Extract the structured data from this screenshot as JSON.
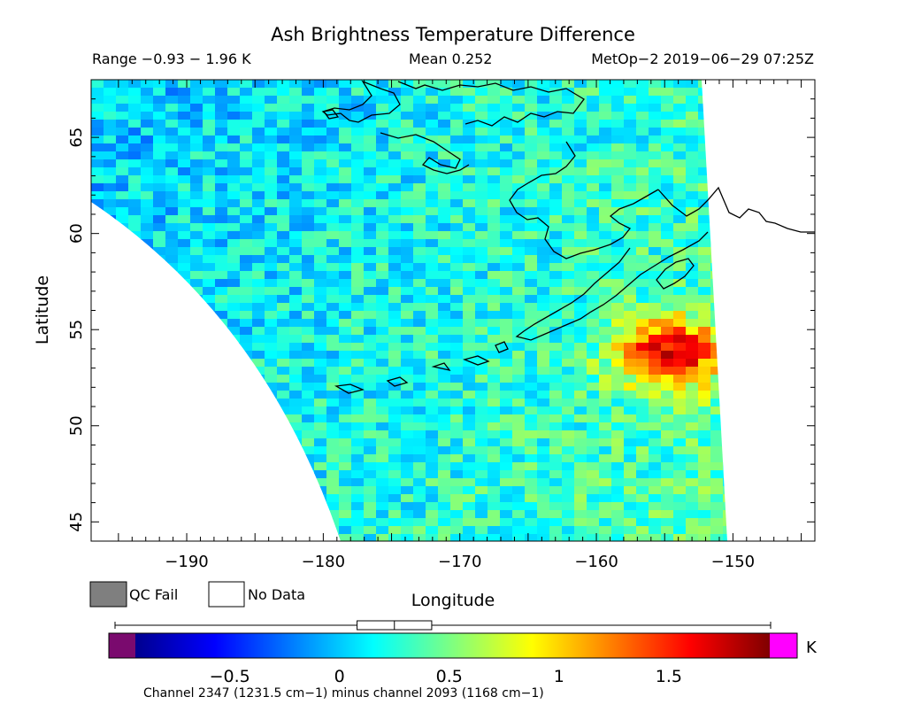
{
  "chart_data": {
    "type": "heatmap",
    "title": "Ash Brightness Temperature Difference",
    "header": {
      "range": "Range −0.93 − 1.96 K",
      "mean": "Mean 0.252",
      "source": "MetOp−2 2019−06−29 07:25Z"
    },
    "xlabel": "Longitude",
    "ylabel": "Latitude",
    "xlim": [
      -197,
      -144
    ],
    "ylim": [
      44,
      68
    ],
    "x_ticks": [
      -190,
      -180,
      -170,
      -160,
      -150
    ],
    "y_ticks": [
      45,
      50,
      55,
      60,
      65
    ],
    "x_tick_labels": [
      "−190",
      "−180",
      "−170",
      "−160",
      "−150"
    ],
    "y_tick_labels": [
      "45",
      "50",
      "55",
      "60",
      "65"
    ],
    "value_range": [
      -0.93,
      1.96
    ],
    "mean": 0.252,
    "hotspot": {
      "lon": -155,
      "lat": 54,
      "value": 1.9
    },
    "colorbar": {
      "unit": "K",
      "min": -0.93,
      "max": 1.96,
      "ticks": [
        -0.5,
        0,
        0.5,
        1,
        1.5
      ],
      "tick_labels": [
        "−0.5",
        "0",
        "0.5",
        "1",
        "1.5"
      ],
      "under_color": "#7a0a6e",
      "over_color": "#ff00ff",
      "box_q1": 0.08,
      "box_median": 0.25,
      "box_q3": 0.42,
      "caption": "Channel 2347 (1231.5 cm−1) minus channel 2093 (1168 cm−1)"
    },
    "legend": [
      {
        "label": "QC Fail",
        "color": "#7f7f7f"
      },
      {
        "label": "No Data",
        "color": "#ffffff"
      }
    ]
  }
}
